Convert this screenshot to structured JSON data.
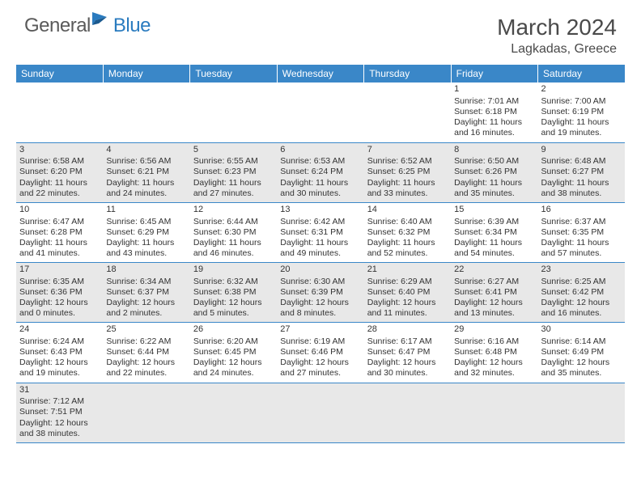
{
  "logo": {
    "general": "General",
    "blue": "Blue"
  },
  "title": "March 2024",
  "location": "Lagkadas, Greece",
  "accent_color": "#3a87c8",
  "shaded_bg": "#e8e8e8",
  "text_color": "#333333",
  "days_of_week": [
    "Sunday",
    "Monday",
    "Tuesday",
    "Wednesday",
    "Thursday",
    "Friday",
    "Saturday"
  ],
  "weeks": [
    [
      null,
      null,
      null,
      null,
      null,
      {
        "num": "1",
        "sunrise": "Sunrise: 7:01 AM",
        "sunset": "Sunset: 6:18 PM",
        "daylight": "Daylight: 11 hours and 16 minutes."
      },
      {
        "num": "2",
        "sunrise": "Sunrise: 7:00 AM",
        "sunset": "Sunset: 6:19 PM",
        "daylight": "Daylight: 11 hours and 19 minutes."
      }
    ],
    [
      {
        "num": "3",
        "sunrise": "Sunrise: 6:58 AM",
        "sunset": "Sunset: 6:20 PM",
        "daylight": "Daylight: 11 hours and 22 minutes."
      },
      {
        "num": "4",
        "sunrise": "Sunrise: 6:56 AM",
        "sunset": "Sunset: 6:21 PM",
        "daylight": "Daylight: 11 hours and 24 minutes."
      },
      {
        "num": "5",
        "sunrise": "Sunrise: 6:55 AM",
        "sunset": "Sunset: 6:23 PM",
        "daylight": "Daylight: 11 hours and 27 minutes."
      },
      {
        "num": "6",
        "sunrise": "Sunrise: 6:53 AM",
        "sunset": "Sunset: 6:24 PM",
        "daylight": "Daylight: 11 hours and 30 minutes."
      },
      {
        "num": "7",
        "sunrise": "Sunrise: 6:52 AM",
        "sunset": "Sunset: 6:25 PM",
        "daylight": "Daylight: 11 hours and 33 minutes."
      },
      {
        "num": "8",
        "sunrise": "Sunrise: 6:50 AM",
        "sunset": "Sunset: 6:26 PM",
        "daylight": "Daylight: 11 hours and 35 minutes."
      },
      {
        "num": "9",
        "sunrise": "Sunrise: 6:48 AM",
        "sunset": "Sunset: 6:27 PM",
        "daylight": "Daylight: 11 hours and 38 minutes."
      }
    ],
    [
      {
        "num": "10",
        "sunrise": "Sunrise: 6:47 AM",
        "sunset": "Sunset: 6:28 PM",
        "daylight": "Daylight: 11 hours and 41 minutes."
      },
      {
        "num": "11",
        "sunrise": "Sunrise: 6:45 AM",
        "sunset": "Sunset: 6:29 PM",
        "daylight": "Daylight: 11 hours and 43 minutes."
      },
      {
        "num": "12",
        "sunrise": "Sunrise: 6:44 AM",
        "sunset": "Sunset: 6:30 PM",
        "daylight": "Daylight: 11 hours and 46 minutes."
      },
      {
        "num": "13",
        "sunrise": "Sunrise: 6:42 AM",
        "sunset": "Sunset: 6:31 PM",
        "daylight": "Daylight: 11 hours and 49 minutes."
      },
      {
        "num": "14",
        "sunrise": "Sunrise: 6:40 AM",
        "sunset": "Sunset: 6:32 PM",
        "daylight": "Daylight: 11 hours and 52 minutes."
      },
      {
        "num": "15",
        "sunrise": "Sunrise: 6:39 AM",
        "sunset": "Sunset: 6:34 PM",
        "daylight": "Daylight: 11 hours and 54 minutes."
      },
      {
        "num": "16",
        "sunrise": "Sunrise: 6:37 AM",
        "sunset": "Sunset: 6:35 PM",
        "daylight": "Daylight: 11 hours and 57 minutes."
      }
    ],
    [
      {
        "num": "17",
        "sunrise": "Sunrise: 6:35 AM",
        "sunset": "Sunset: 6:36 PM",
        "daylight": "Daylight: 12 hours and 0 minutes."
      },
      {
        "num": "18",
        "sunrise": "Sunrise: 6:34 AM",
        "sunset": "Sunset: 6:37 PM",
        "daylight": "Daylight: 12 hours and 2 minutes."
      },
      {
        "num": "19",
        "sunrise": "Sunrise: 6:32 AM",
        "sunset": "Sunset: 6:38 PM",
        "daylight": "Daylight: 12 hours and 5 minutes."
      },
      {
        "num": "20",
        "sunrise": "Sunrise: 6:30 AM",
        "sunset": "Sunset: 6:39 PM",
        "daylight": "Daylight: 12 hours and 8 minutes."
      },
      {
        "num": "21",
        "sunrise": "Sunrise: 6:29 AM",
        "sunset": "Sunset: 6:40 PM",
        "daylight": "Daylight: 12 hours and 11 minutes."
      },
      {
        "num": "22",
        "sunrise": "Sunrise: 6:27 AM",
        "sunset": "Sunset: 6:41 PM",
        "daylight": "Daylight: 12 hours and 13 minutes."
      },
      {
        "num": "23",
        "sunrise": "Sunrise: 6:25 AM",
        "sunset": "Sunset: 6:42 PM",
        "daylight": "Daylight: 12 hours and 16 minutes."
      }
    ],
    [
      {
        "num": "24",
        "sunrise": "Sunrise: 6:24 AM",
        "sunset": "Sunset: 6:43 PM",
        "daylight": "Daylight: 12 hours and 19 minutes."
      },
      {
        "num": "25",
        "sunrise": "Sunrise: 6:22 AM",
        "sunset": "Sunset: 6:44 PM",
        "daylight": "Daylight: 12 hours and 22 minutes."
      },
      {
        "num": "26",
        "sunrise": "Sunrise: 6:20 AM",
        "sunset": "Sunset: 6:45 PM",
        "daylight": "Daylight: 12 hours and 24 minutes."
      },
      {
        "num": "27",
        "sunrise": "Sunrise: 6:19 AM",
        "sunset": "Sunset: 6:46 PM",
        "daylight": "Daylight: 12 hours and 27 minutes."
      },
      {
        "num": "28",
        "sunrise": "Sunrise: 6:17 AM",
        "sunset": "Sunset: 6:47 PM",
        "daylight": "Daylight: 12 hours and 30 minutes."
      },
      {
        "num": "29",
        "sunrise": "Sunrise: 6:16 AM",
        "sunset": "Sunset: 6:48 PM",
        "daylight": "Daylight: 12 hours and 32 minutes."
      },
      {
        "num": "30",
        "sunrise": "Sunrise: 6:14 AM",
        "sunset": "Sunset: 6:49 PM",
        "daylight": "Daylight: 12 hours and 35 minutes."
      }
    ],
    [
      {
        "num": "31",
        "sunrise": "Sunrise: 7:12 AM",
        "sunset": "Sunset: 7:51 PM",
        "daylight": "Daylight: 12 hours and 38 minutes."
      },
      null,
      null,
      null,
      null,
      null,
      null
    ]
  ]
}
